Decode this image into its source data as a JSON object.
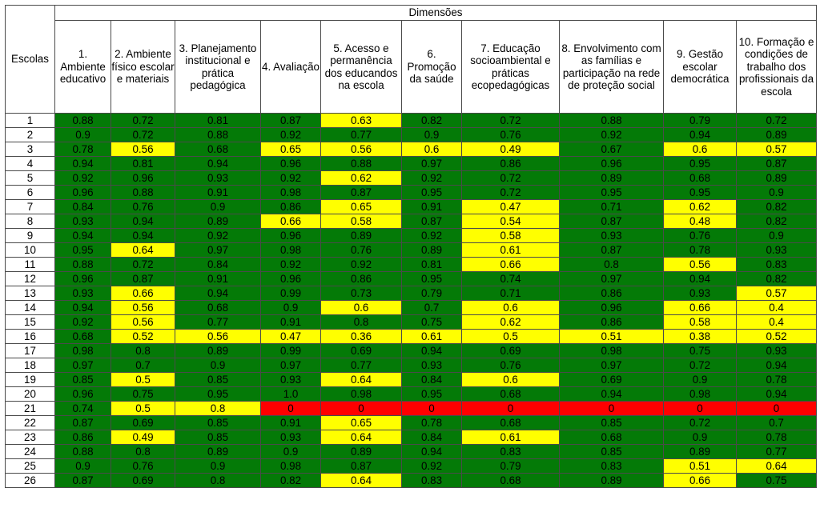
{
  "table": {
    "row_header": "Escolas",
    "group_header": "Dimensões",
    "columns": [
      "1. Ambiente educativo",
      "2. Ambiente físico escolar e materiais",
      "3. Planejamento institucional e prática pedagógica",
      "4. Avaliação",
      "5. Acesso e permanência dos educandos na escola",
      "6. Promoção da saúde",
      "7. Educação socioambiental e práticas ecopedagógicas",
      "8. Envolvimento com as famílias e participação na rede de proteção social",
      "9. Gestão escolar democrática",
      "10. Formação e condições de trabalho dos profissionais da escola"
    ],
    "colors": {
      "green": "#047a07",
      "yellow": "#ffff00",
      "red": "#ff0000"
    }
  },
  "chart_data": {
    "type": "table",
    "categories": [
      "1",
      "2",
      "3",
      "4",
      "5",
      "6",
      "7",
      "8",
      "9",
      "10",
      "11",
      "12",
      "13",
      "14",
      "15",
      "16",
      "17",
      "18",
      "19",
      "20",
      "21",
      "22",
      "23",
      "24",
      "25",
      "26"
    ],
    "rows": [
      {
        "school": "1",
        "values": [
          "0.88",
          "0.72",
          "0.81",
          "0.87",
          "0.63",
          "0.82",
          "0.72",
          "0.88",
          "0.79",
          "0.72"
        ],
        "levels": [
          "g",
          "g",
          "g",
          "g",
          "y",
          "g",
          "g",
          "g",
          "g",
          "g"
        ]
      },
      {
        "school": "2",
        "values": [
          "0.9",
          "0.72",
          "0.88",
          "0.92",
          "0.77",
          "0.9",
          "0.76",
          "0.92",
          "0.94",
          "0.89"
        ],
        "levels": [
          "g",
          "g",
          "g",
          "g",
          "g",
          "g",
          "g",
          "g",
          "g",
          "g"
        ]
      },
      {
        "school": "3",
        "values": [
          "0.78",
          "0.56",
          "0.68",
          "0.65",
          "0.56",
          "0.6",
          "0.49",
          "0.67",
          "0.6",
          "0.57"
        ],
        "levels": [
          "g",
          "y",
          "g",
          "y",
          "y",
          "y",
          "y",
          "g",
          "y",
          "y"
        ]
      },
      {
        "school": "4",
        "values": [
          "0.94",
          "0.81",
          "0.94",
          "0.96",
          "0.88",
          "0.97",
          "0.86",
          "0.96",
          "0.95",
          "0.87"
        ],
        "levels": [
          "g",
          "g",
          "g",
          "g",
          "g",
          "g",
          "g",
          "g",
          "g",
          "g"
        ]
      },
      {
        "school": "5",
        "values": [
          "0.92",
          "0.96",
          "0.93",
          "0.92",
          "0.62",
          "0.92",
          "0.72",
          "0.89",
          "0.68",
          "0.89"
        ],
        "levels": [
          "g",
          "g",
          "g",
          "g",
          "y",
          "g",
          "g",
          "g",
          "g",
          "g"
        ]
      },
      {
        "school": "6",
        "values": [
          "0.96",
          "0.88",
          "0.91",
          "0.98",
          "0.87",
          "0.95",
          "0.72",
          "0.95",
          "0.95",
          "0.9"
        ],
        "levels": [
          "g",
          "g",
          "g",
          "g",
          "g",
          "g",
          "g",
          "g",
          "g",
          "g"
        ]
      },
      {
        "school": "7",
        "values": [
          "0.84",
          "0.76",
          "0.9",
          "0.86",
          "0.65",
          "0.91",
          "0.47",
          "0.71",
          "0.62",
          "0.82"
        ],
        "levels": [
          "g",
          "g",
          "g",
          "g",
          "y",
          "g",
          "y",
          "g",
          "y",
          "g"
        ]
      },
      {
        "school": "8",
        "values": [
          "0.93",
          "0.94",
          "0.89",
          "0.66",
          "0.58",
          "0.87",
          "0.54",
          "0.87",
          "0.48",
          "0.82"
        ],
        "levels": [
          "g",
          "g",
          "g",
          "y",
          "y",
          "g",
          "y",
          "g",
          "y",
          "g"
        ]
      },
      {
        "school": "9",
        "values": [
          "0.94",
          "0.94",
          "0.92",
          "0.96",
          "0.89",
          "0.92",
          "0.58",
          "0.93",
          "0.76",
          "0.9"
        ],
        "levels": [
          "g",
          "g",
          "g",
          "g",
          "g",
          "g",
          "y",
          "g",
          "g",
          "g"
        ]
      },
      {
        "school": "10",
        "values": [
          "0.95",
          "0.64",
          "0.97",
          "0.98",
          "0.76",
          "0.89",
          "0.61",
          "0.87",
          "0.78",
          "0.93"
        ],
        "levels": [
          "g",
          "y",
          "g",
          "g",
          "g",
          "g",
          "y",
          "g",
          "g",
          "g"
        ]
      },
      {
        "school": "11",
        "values": [
          "0.88",
          "0.72",
          "0.84",
          "0.92",
          "0.92",
          "0.81",
          "0.66",
          "0.8",
          "0.56",
          "0.83"
        ],
        "levels": [
          "g",
          "g",
          "g",
          "g",
          "g",
          "g",
          "y",
          "g",
          "y",
          "g"
        ]
      },
      {
        "school": "12",
        "values": [
          "0.96",
          "0.87",
          "0.91",
          "0.96",
          "0.86",
          "0.95",
          "0.74",
          "0.97",
          "0.94",
          "0.82"
        ],
        "levels": [
          "g",
          "g",
          "g",
          "g",
          "g",
          "g",
          "g",
          "g",
          "g",
          "g"
        ]
      },
      {
        "school": "13",
        "values": [
          "0.93",
          "0.66",
          "0.94",
          "0.99",
          "0.73",
          "0.79",
          "0.71",
          "0.86",
          "0.93",
          "0.57"
        ],
        "levels": [
          "g",
          "y",
          "g",
          "g",
          "g",
          "g",
          "g",
          "g",
          "g",
          "y"
        ]
      },
      {
        "school": "14",
        "values": [
          "0.94",
          "0.56",
          "0.68",
          "0.9",
          "0.6",
          "0.7",
          "0.6",
          "0.96",
          "0.66",
          "0.4"
        ],
        "levels": [
          "g",
          "y",
          "g",
          "g",
          "y",
          "g",
          "y",
          "g",
          "y",
          "y"
        ]
      },
      {
        "school": "15",
        "values": [
          "0.92",
          "0.56",
          "0.77",
          "0.91",
          "0.8",
          "0.75",
          "0.62",
          "0.86",
          "0.58",
          "0.4"
        ],
        "levels": [
          "g",
          "y",
          "g",
          "g",
          "g",
          "g",
          "y",
          "g",
          "y",
          "y"
        ]
      },
      {
        "school": "16",
        "values": [
          "0.68",
          "0.52",
          "0.56",
          "0.47",
          "0.36",
          "0.61",
          "0.5",
          "0.51",
          "0.38",
          "0.52"
        ],
        "levels": [
          "g",
          "y",
          "y",
          "y",
          "y",
          "y",
          "y",
          "y",
          "y",
          "y"
        ]
      },
      {
        "school": "17",
        "values": [
          "0.98",
          "0.8",
          "0.89",
          "0.99",
          "0.69",
          "0.94",
          "0.69",
          "0.98",
          "0.75",
          "0.93"
        ],
        "levels": [
          "g",
          "g",
          "g",
          "g",
          "g",
          "g",
          "g",
          "g",
          "g",
          "g"
        ]
      },
      {
        "school": "18",
        "values": [
          "0.97",
          "0.7",
          "0.9",
          "0.97",
          "0.77",
          "0.93",
          "0.76",
          "0.97",
          "0.72",
          "0.94"
        ],
        "levels": [
          "g",
          "g",
          "g",
          "g",
          "g",
          "g",
          "g",
          "g",
          "g",
          "g"
        ]
      },
      {
        "school": "19",
        "values": [
          "0.85",
          "0.5",
          "0.85",
          "0.93",
          "0.64",
          "0.84",
          "0.6",
          "0.69",
          "0.9",
          "0.78"
        ],
        "levels": [
          "g",
          "y",
          "g",
          "g",
          "y",
          "g",
          "y",
          "g",
          "g",
          "g"
        ]
      },
      {
        "school": "20",
        "values": [
          "0.96",
          "0.75",
          "0.95",
          "1.0",
          "0.98",
          "0.95",
          "0.68",
          "0.94",
          "0.98",
          "0.94"
        ],
        "levels": [
          "g",
          "g",
          "g",
          "g",
          "g",
          "g",
          "g",
          "g",
          "g",
          "g"
        ]
      },
      {
        "school": "21",
        "values": [
          "0.74",
          "0.5",
          "0.8",
          "0",
          "0",
          "0",
          "0",
          "0",
          "0",
          "0"
        ],
        "levels": [
          "g",
          "y",
          "y",
          "r",
          "r",
          "r",
          "r",
          "r",
          "r",
          "r"
        ]
      },
      {
        "school": "22",
        "values": [
          "0.87",
          "0.69",
          "0.85",
          "0.91",
          "0.65",
          "0.78",
          "0.68",
          "0.85",
          "0.72",
          "0.7"
        ],
        "levels": [
          "g",
          "g",
          "g",
          "g",
          "y",
          "g",
          "g",
          "g",
          "g",
          "g"
        ]
      },
      {
        "school": "23",
        "values": [
          "0.86",
          "0.49",
          "0.85",
          "0.93",
          "0.64",
          "0.84",
          "0.61",
          "0.68",
          "0.9",
          "0.78"
        ],
        "levels": [
          "g",
          "y",
          "g",
          "g",
          "y",
          "g",
          "y",
          "g",
          "g",
          "g"
        ]
      },
      {
        "school": "24",
        "values": [
          "0.88",
          "0.8",
          "0.89",
          "0.9",
          "0.89",
          "0.94",
          "0.83",
          "0.85",
          "0.89",
          "0.77"
        ],
        "levels": [
          "g",
          "g",
          "g",
          "g",
          "g",
          "g",
          "g",
          "g",
          "g",
          "g"
        ]
      },
      {
        "school": "25",
        "values": [
          "0.9",
          "0.76",
          "0.9",
          "0.98",
          "0.87",
          "0.92",
          "0.79",
          "0.83",
          "0.51",
          "0.64"
        ],
        "levels": [
          "g",
          "g",
          "g",
          "g",
          "g",
          "g",
          "g",
          "g",
          "y",
          "y"
        ]
      },
      {
        "school": "26",
        "values": [
          "0.87",
          "0.69",
          "0.8",
          "0.82",
          "0.64",
          "0.83",
          "0.68",
          "0.89",
          "0.66",
          "0.75"
        ],
        "levels": [
          "g",
          "g",
          "g",
          "g",
          "y",
          "g",
          "g",
          "g",
          "y",
          "g"
        ]
      }
    ]
  }
}
